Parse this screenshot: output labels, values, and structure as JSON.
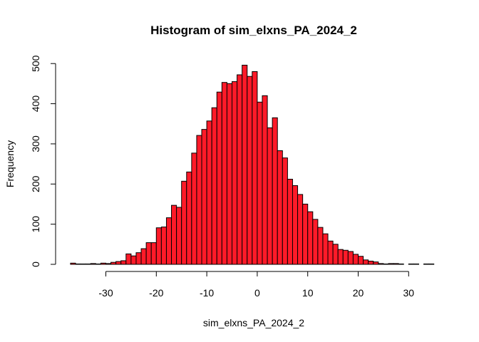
{
  "chart_data": {
    "type": "bar",
    "title": "Histogram of sim_elxns_PA_2024_2",
    "xlabel": "sim_elxns_PA_2024_2",
    "ylabel": "Frequency",
    "bar_color": "#FF1A28",
    "border_color": "#000000",
    "xlim": [
      -37,
      35
    ],
    "ylim": [
      0,
      500
    ],
    "x_ticks": [
      -30,
      -20,
      -10,
      0,
      10,
      20,
      30
    ],
    "x_tick_labels": [
      "-30",
      "-20",
      "-10",
      "0",
      "10",
      "20",
      "30"
    ],
    "y_ticks": [
      0,
      100,
      200,
      300,
      400,
      500
    ],
    "y_tick_labels": [
      "0",
      "100",
      "200",
      "300",
      "400",
      "500"
    ],
    "bin_width": 1,
    "bin_start": -37,
    "values": [
      3,
      1,
      1,
      1,
      2,
      1,
      3,
      2,
      5,
      7,
      9,
      26,
      21,
      29,
      39,
      54,
      54,
      91,
      93,
      116,
      147,
      142,
      207,
      230,
      277,
      321,
      336,
      357,
      390,
      429,
      453,
      450,
      455,
      472,
      496,
      468,
      480,
      404,
      420,
      340,
      365,
      283,
      265,
      212,
      196,
      174,
      150,
      131,
      112,
      92,
      76,
      58,
      50,
      37,
      35,
      32,
      25,
      20,
      11,
      8,
      6,
      2,
      1,
      2,
      2,
      1,
      0,
      1,
      1,
      0,
      1,
      1
    ]
  }
}
